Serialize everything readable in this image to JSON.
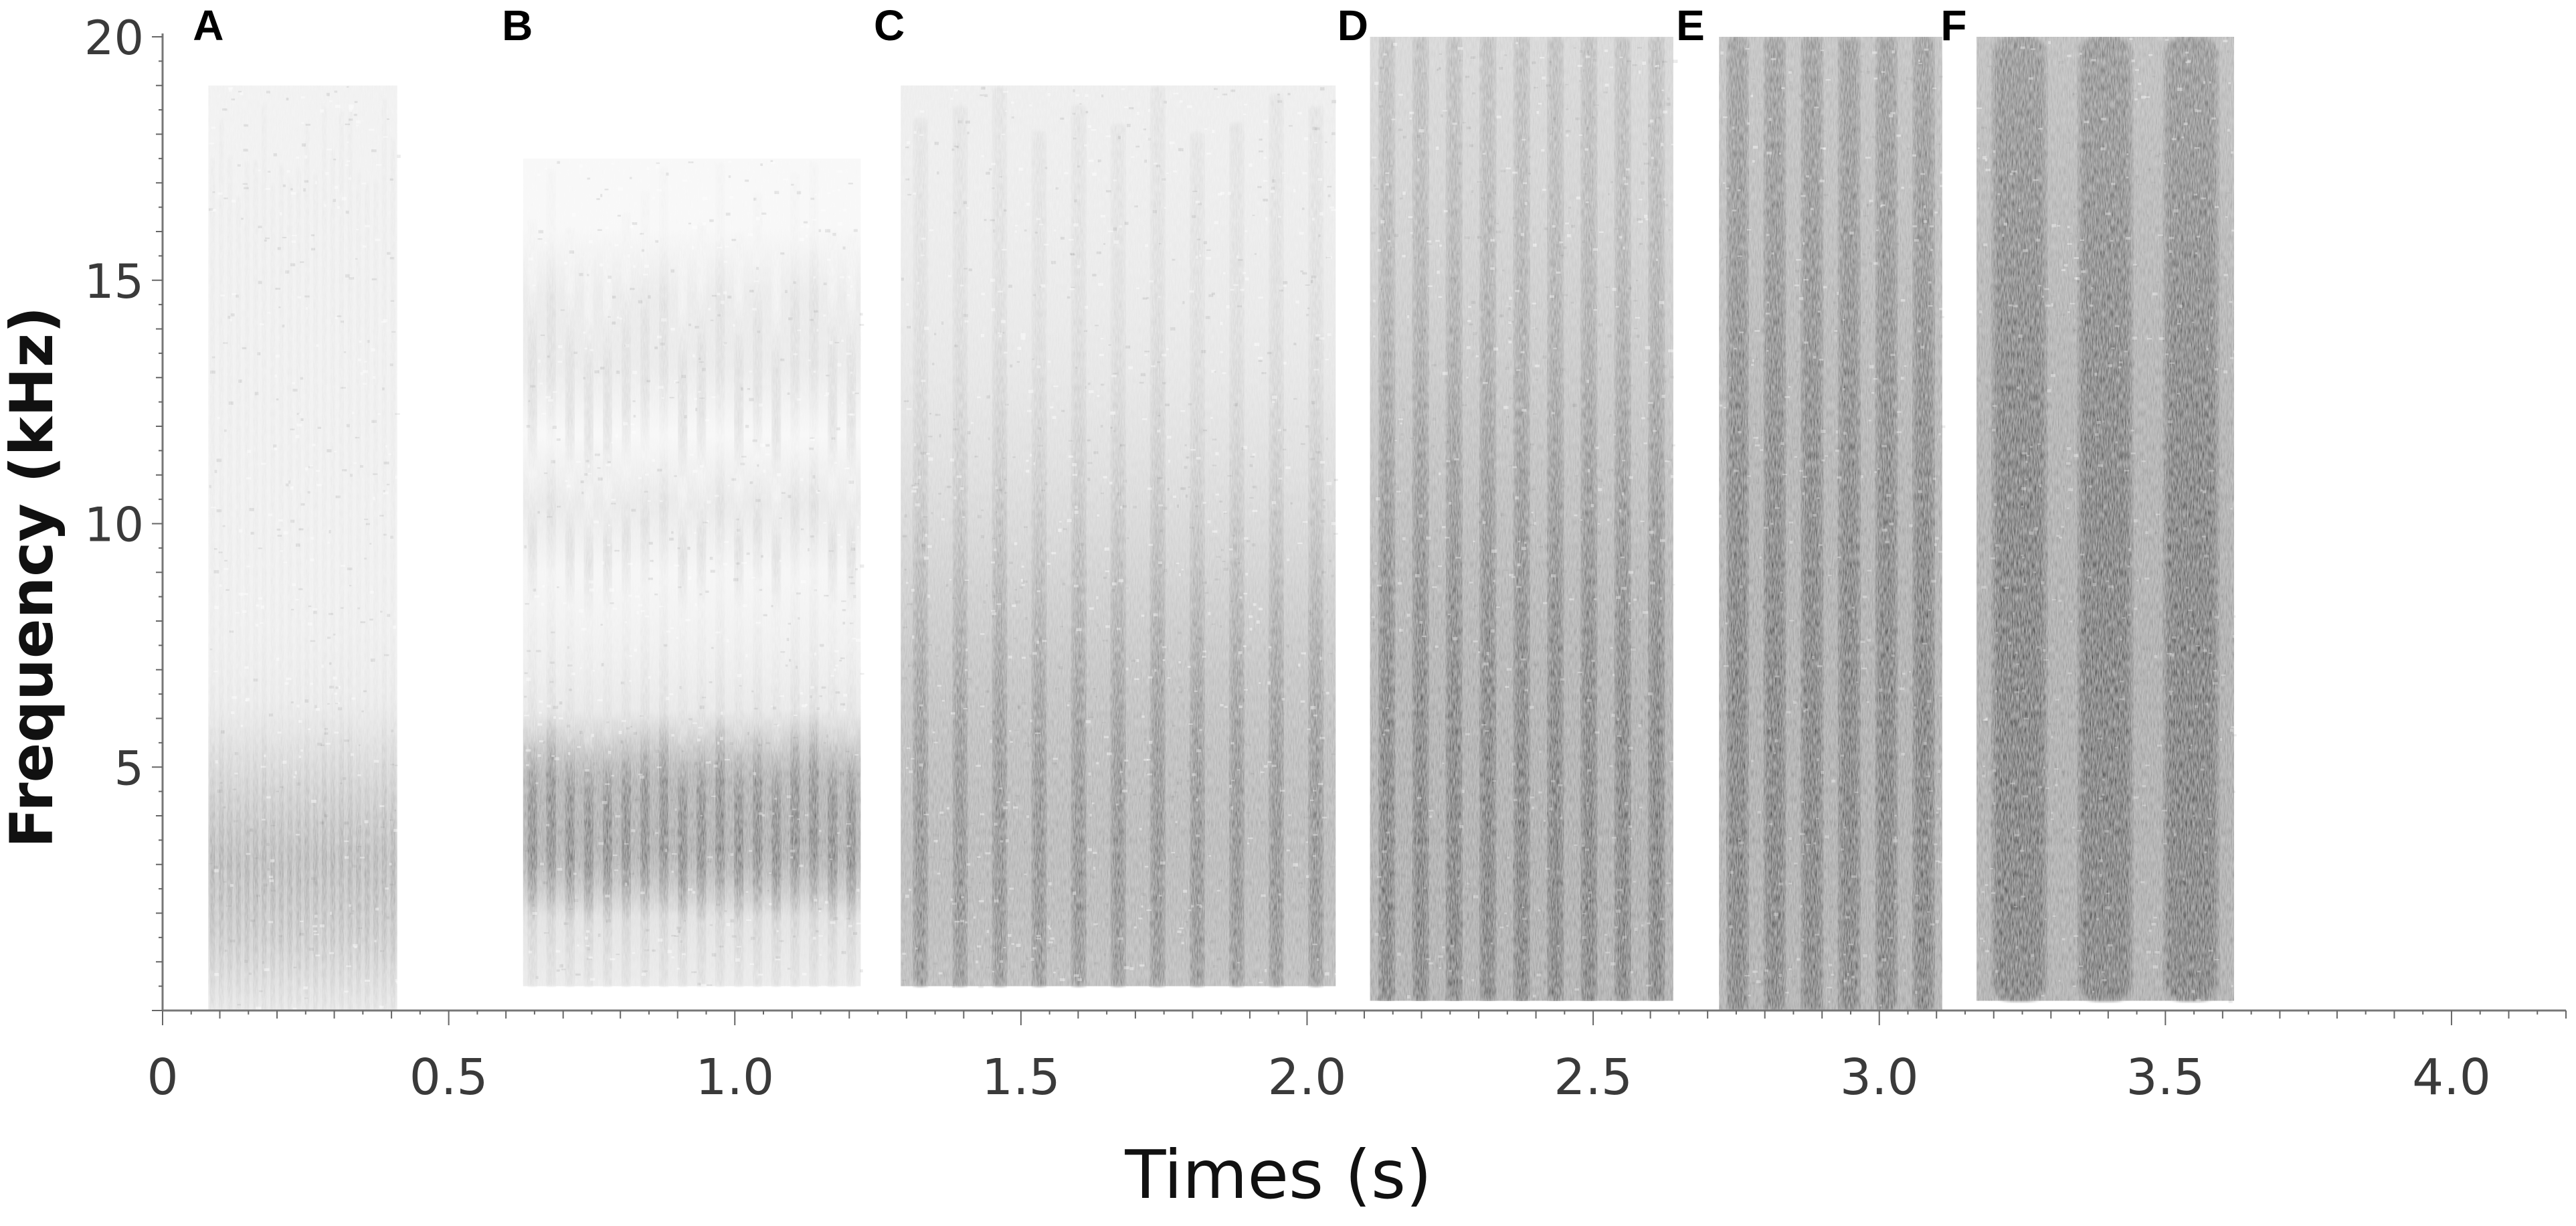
{
  "chart_data": {
    "type": "heatmap",
    "description_kind": "spectrogram",
    "xlabel": "Times (s)",
    "ylabel": "Frequency (kHz)",
    "xlim": [
      0,
      4.2
    ],
    "ylim": [
      0,
      20
    ],
    "x_ticks": [
      0,
      0.5,
      1.0,
      1.5,
      2.0,
      2.5,
      3.0,
      3.5,
      4.0
    ],
    "x_tick_labels": [
      "0",
      "0.5",
      "1.0",
      "1.5",
      "2.0",
      "2.5",
      "3.0",
      "3.5",
      "4.0"
    ],
    "y_ticks": [
      5,
      10,
      15,
      20
    ],
    "y_tick_labels": [
      "5",
      "10",
      "15",
      "20"
    ],
    "colormap": "grayscale (dark = high energy)",
    "grid": false,
    "panels": [
      {
        "label": "A",
        "label_x": 0.08,
        "t_start": 0.08,
        "t_end": 0.41,
        "f_min": 0.0,
        "f_max": 19.0,
        "pulses": 22,
        "pulse_width": 0.5,
        "max_intensity": 0.55,
        "energy_center_khz": 3.0,
        "energy_spread_khz": 2.2,
        "background_intensity": 0.12
      },
      {
        "label": "B",
        "label_x": 0.62,
        "t_start": 0.63,
        "t_end": 1.22,
        "f_min": 0.5,
        "f_max": 17.5,
        "pulses": 18,
        "pulse_width": 0.45,
        "max_intensity": 0.85,
        "energy_center_khz": 3.5,
        "energy_spread_khz": 3.5,
        "background_intensity": 0.18,
        "bands_khz": [
          [
            2,
            6
          ],
          [
            9.5,
            11.5
          ],
          [
            13,
            16
          ]
        ]
      },
      {
        "label": "C",
        "label_x": 1.27,
        "t_start": 1.29,
        "t_end": 2.05,
        "f_min": 0.5,
        "f_max": 19.0,
        "pulses": 11,
        "pulse_width": 0.35,
        "max_intensity": 0.72,
        "energy_center_khz": 3.0,
        "energy_spread_khz": 7.0,
        "background_intensity": 0.15
      },
      {
        "label": "D",
        "label_x": 2.08,
        "t_start": 2.11,
        "t_end": 2.64,
        "f_min": 0.2,
        "f_max": 20.0,
        "pulses": 9,
        "pulse_width": 0.45,
        "max_intensity": 0.95,
        "energy_center_khz": 3.0,
        "energy_spread_khz": 9.0,
        "background_intensity": 0.35
      },
      {
        "label": "E",
        "label_x": 2.67,
        "t_start": 2.72,
        "t_end": 3.11,
        "f_min": 0.0,
        "f_max": 20.0,
        "pulses": 6,
        "pulse_width": 0.55,
        "max_intensity": 0.95,
        "energy_center_khz": 5.0,
        "energy_spread_khz": 10.0,
        "background_intensity": 0.55
      },
      {
        "label": "F",
        "label_x": 3.13,
        "t_start": 3.17,
        "t_end": 3.62,
        "f_min": 0.2,
        "f_max": 20.0,
        "pulses": 3,
        "pulse_width": 0.6,
        "max_intensity": 1.0,
        "energy_center_khz": 6.0,
        "energy_spread_khz": 11.0,
        "background_intensity": 0.55
      }
    ]
  }
}
